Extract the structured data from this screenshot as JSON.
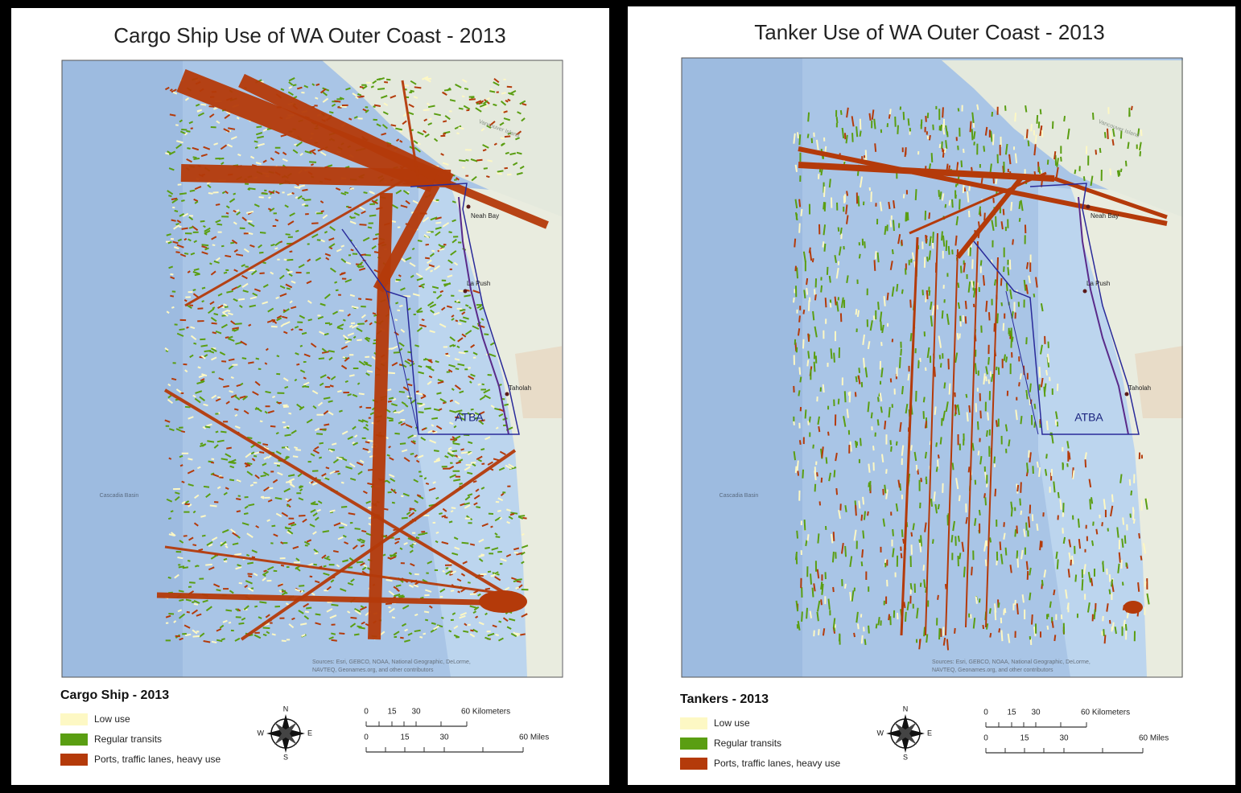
{
  "panels": [
    {
      "title": "Cargo Ship Use of WA Outer Coast - 2013",
      "map_labels": [
        "Neah Bay",
        "La Push",
        "Taholah",
        "ATBA",
        "Cascadia Basin",
        "Vancouver Island"
      ],
      "attribution": [
        "Sources: Esri, GEBCO, NOAA, National Geographic, DeLorme,",
        "NAVTEQ, Geonames.org, and other contributors"
      ],
      "legend": {
        "title": "Cargo Ship - 2013",
        "items": [
          {
            "label": "Low use",
            "color": "#fdf8c4"
          },
          {
            "label": "Regular transits",
            "color": "#5a9e12"
          },
          {
            "label": "Ports, traffic lanes, heavy use",
            "color": "#b43a0a"
          }
        ]
      },
      "compass": [
        "N",
        "E",
        "S",
        "W"
      ],
      "scale": {
        "km": [
          "0",
          "15",
          "30",
          "60 Kilometers"
        ],
        "mi": [
          "0",
          "15",
          "30",
          "60 Miles"
        ]
      }
    },
    {
      "title": "Tanker Use of WA Outer Coast - 2013",
      "map_labels": [
        "Neah Bay",
        "La Push",
        "Taholah",
        "ATBA",
        "Cascadia Basin",
        "Vancouver Island"
      ],
      "attribution": [
        "Sources: Esri, GEBCO, NOAA, National Geographic, DeLorme,",
        "NAVTEQ, Geonames.org, and other contributors"
      ],
      "legend": {
        "title": "Tankers - 2013",
        "items": [
          {
            "label": "Low use",
            "color": "#fdf8c4"
          },
          {
            "label": "Regular transits",
            "color": "#5a9e12"
          },
          {
            "label": "Ports, traffic lanes, heavy use",
            "color": "#b43a0a"
          }
        ]
      },
      "compass": [
        "N",
        "E",
        "S",
        "W"
      ],
      "scale": {
        "km": [
          "0",
          "15",
          "30",
          "60 Kilometers"
        ],
        "mi": [
          "0",
          "15",
          "30",
          "60 Miles"
        ]
      }
    }
  ]
}
